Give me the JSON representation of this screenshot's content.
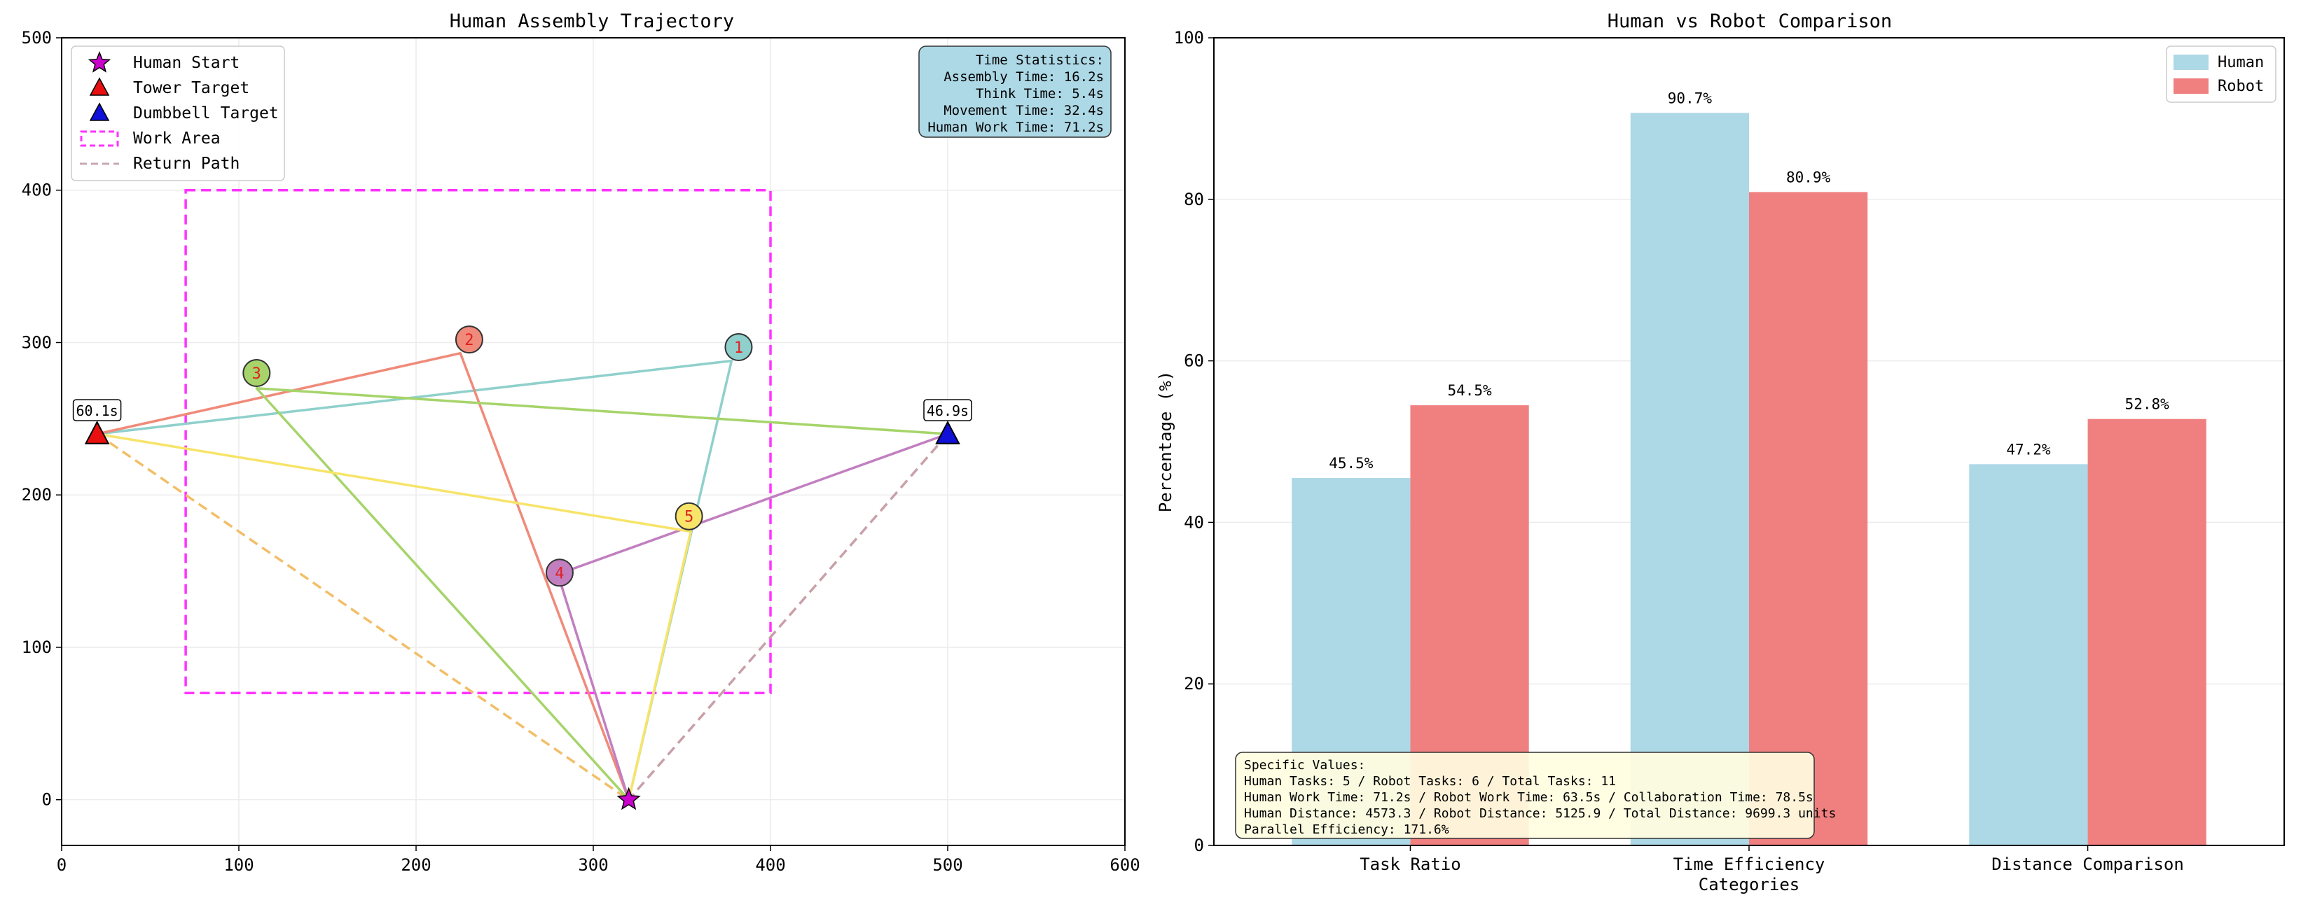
{
  "chart_data": [
    {
      "type": "scatter",
      "title": "Human Assembly Trajectory",
      "xlabel": "",
      "ylabel": "",
      "xlim": [
        0,
        600
      ],
      "ylim": [
        -30,
        500
      ],
      "xticks": [
        0,
        100,
        200,
        300,
        400,
        500,
        600
      ],
      "yticks": [
        0,
        100,
        200,
        300,
        400,
        500
      ],
      "grid": true,
      "legend_position": "top-left",
      "legend": [
        {
          "label": "Human Start",
          "marker": "star",
          "color": "#cc00cc"
        },
        {
          "label": "Tower Target",
          "marker": "triangle",
          "color": "#e81010"
        },
        {
          "label": "Dumbbell Target",
          "marker": "triangle",
          "color": "#1010d8"
        },
        {
          "label": "Work Area",
          "marker": "dashed-rect",
          "color": "#ff33ff"
        },
        {
          "label": "Return Path",
          "marker": "dashed-line",
          "color": "#c8a8b0"
        }
      ],
      "human_start": {
        "x": 320,
        "y": 0
      },
      "tower_target": {
        "x": 20,
        "y": 240,
        "label": "60.1s"
      },
      "dumbbell_target": {
        "x": 500,
        "y": 240,
        "label": "46.9s"
      },
      "work_area": {
        "x0": 70,
        "y0": 70,
        "x1": 400,
        "y1": 400
      },
      "trips": [
        {
          "label": "1",
          "x": 382,
          "y": 297,
          "color": "#8fd0cc",
          "path": [
            [
              320,
              0
            ],
            [
              378,
              288
            ],
            [
              20,
              240
            ]
          ]
        },
        {
          "label": "2",
          "x": 230,
          "y": 302,
          "color": "#f08a7a",
          "path": [
            [
              20,
              240
            ],
            [
              225,
              293
            ],
            [
              320,
              0
            ]
          ]
        },
        {
          "label": "3",
          "x": 110,
          "y": 280,
          "color": "#a6d46a",
          "path": [
            [
              500,
              240
            ],
            [
              110,
              270
            ],
            [
              320,
              0
            ]
          ]
        },
        {
          "label": "4",
          "x": 281,
          "y": 149,
          "color": "#c27fc0",
          "path": [
            [
              320,
              0
            ],
            [
              280,
              148
            ],
            [
              500,
              240
            ]
          ]
        },
        {
          "label": "5",
          "x": 354,
          "y": 186,
          "color": "#f7e468",
          "path": [
            [
              20,
              240
            ],
            [
              355,
              176
            ],
            [
              320,
              0
            ]
          ]
        }
      ],
      "return_paths": [
        {
          "color": "#f2be68",
          "path": [
            [
              20,
              240
            ],
            [
              320,
              0
            ]
          ]
        },
        {
          "color": "#c8a0a8",
          "path": [
            [
              500,
              240
            ],
            [
              320,
              0
            ]
          ]
        }
      ],
      "stats_box": {
        "position": "top-right",
        "lines": [
          "Time Statistics:",
          "Assembly Time: 16.2s",
          "Think Time: 5.4s",
          "Movement Time: 32.4s",
          "Human Work Time: 71.2s"
        ]
      }
    },
    {
      "type": "bar",
      "title": "Human vs Robot Comparison",
      "xlabel": "Categories",
      "ylabel": "Percentage (%)",
      "ylim": [
        0,
        100
      ],
      "yticks": [
        0,
        20,
        40,
        60,
        80,
        100
      ],
      "grid": true,
      "legend_position": "top-right",
      "categories": [
        "Task Ratio",
        "Time Efficiency",
        "Distance Comparison"
      ],
      "series": [
        {
          "name": "Human",
          "color": "#add8e6",
          "values": [
            45.5,
            90.7,
            47.2
          ],
          "labels": [
            "45.5%",
            "90.7%",
            "47.2%"
          ]
        },
        {
          "name": "Robot",
          "color": "#f08080",
          "values": [
            54.5,
            80.9,
            52.8
          ],
          "labels": [
            "54.5%",
            "80.9%",
            "52.8%"
          ]
        }
      ],
      "values_box": {
        "position": "bottom-left",
        "lines": [
          "Specific Values:",
          "Human Tasks: 5 / Robot Tasks: 6 / Total Tasks: 11",
          "Human Work Time: 71.2s / Robot Work Time: 63.5s / Collaboration Time: 78.5s",
          "Human Distance: 4573.3 / Robot Distance: 5125.9 / Total Distance: 9699.3 units",
          "Parallel Efficiency: 171.6%"
        ]
      }
    }
  ]
}
